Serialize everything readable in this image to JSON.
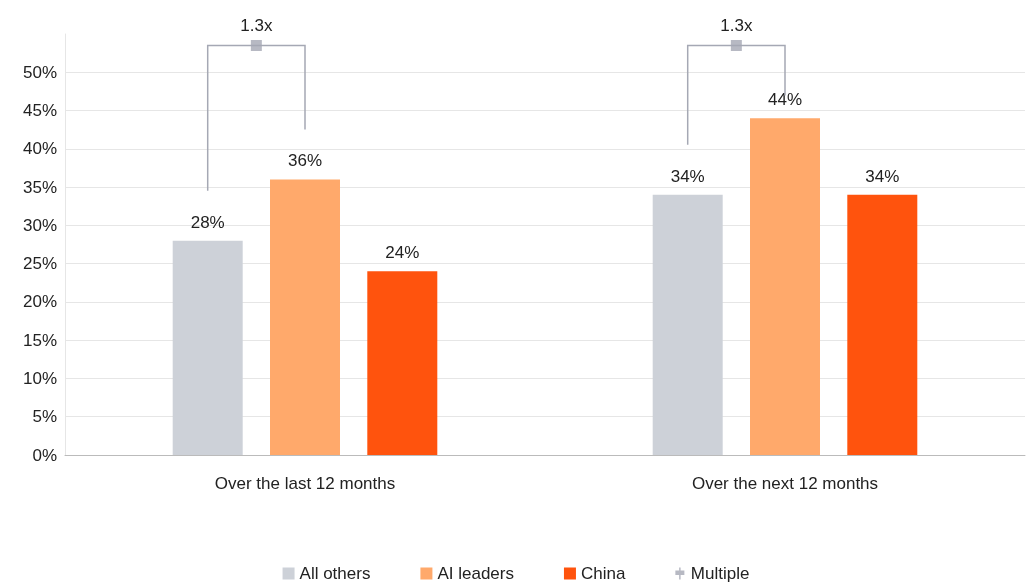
{
  "chart_data": {
    "type": "bar",
    "categories": [
      "Over the last 12 months",
      "Over the next 12 months"
    ],
    "series": [
      {
        "name": "All others",
        "color": "#cdd1d8",
        "values": [
          28,
          34
        ],
        "value_labels": [
          "28%",
          "34%"
        ]
      },
      {
        "name": "AI leaders",
        "color": "#ffa96b",
        "values": [
          36,
          44
        ],
        "value_labels": [
          "36%",
          "44%"
        ]
      },
      {
        "name": "China",
        "color": "#ff530d",
        "values": [
          24,
          34
        ],
        "value_labels": [
          "24%",
          "34%"
        ]
      },
      {
        "name": "Multiple",
        "type": "scatter",
        "marker": "square",
        "color": "#a5a8b4",
        "x": [
          "Over the last 12 months",
          "Over the next 12 months"
        ],
        "values": [
          53.5,
          53.5
        ]
      }
    ],
    "annotations": [
      "1.3x",
      "1.3x"
    ],
    "ylim": [
      0,
      55
    ],
    "yticks": [
      {
        "value": 0,
        "label": "0%"
      },
      {
        "value": 5,
        "label": "5%"
      },
      {
        "value": 10,
        "label": "10%"
      },
      {
        "value": 15,
        "label": "15%"
      },
      {
        "value": 20,
        "label": "20%"
      },
      {
        "value": 25,
        "label": "25%"
      },
      {
        "value": 30,
        "label": "30%"
      },
      {
        "value": 35,
        "label": "35%"
      },
      {
        "value": 40,
        "label": "40%"
      },
      {
        "value": 45,
        "label": "45%"
      },
      {
        "value": 50,
        "label": "50%"
      }
    ],
    "grid": "y",
    "legend": "bottom"
  }
}
